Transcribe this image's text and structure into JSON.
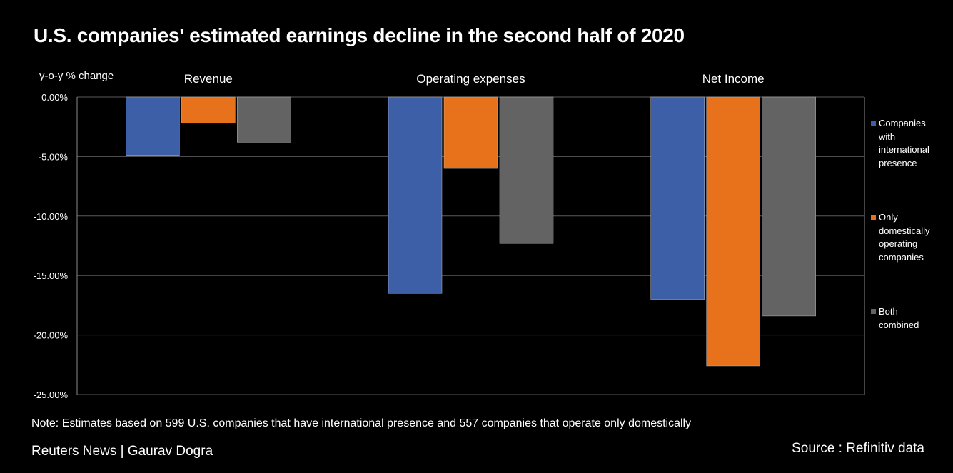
{
  "title": "U.S. companies' estimated earnings decline in the second half of 2020",
  "note": "Note: Estimates based on 599 U.S. companies that have international presence and 557 companies that operate only domestically",
  "credit": "Reuters News | Gaurav Dogra",
  "source": "Source : Refinitiv data",
  "colors": {
    "international": "#3c5fa8",
    "domestic": "#e8711c",
    "combined": "#636363",
    "grid": "#5a5a5a",
    "axis": "#8a8a8a"
  },
  "chart_data": {
    "type": "bar",
    "ylabel": "y-o-y % change",
    "categories": [
      "Revenue",
      "Operating expenses",
      "Net Income"
    ],
    "series": [
      {
        "name": "Companies with international presence",
        "legend_lines": [
          "Companies",
          "with",
          "international",
          "presence"
        ],
        "values": [
          -4.9,
          -16.5,
          -17.0
        ]
      },
      {
        "name": "Only domestically operating companies",
        "legend_lines": [
          "Only",
          "domestically",
          "operating",
          "companies"
        ],
        "values": [
          -2.2,
          -6.0,
          -22.6
        ]
      },
      {
        "name": "Both combined",
        "legend_lines": [
          "Both",
          "combined"
        ],
        "values": [
          -3.8,
          -12.3,
          -18.4
        ]
      }
    ],
    "ylim": [
      -25,
      0
    ],
    "yticks": [
      0,
      -5,
      -10,
      -15,
      -20,
      -25
    ],
    "ytick_labels": [
      "0.00%",
      "-5.00%",
      "-10.00%",
      "-15.00%",
      "-20.00%",
      "-25.00%"
    ],
    "grid": true,
    "legend_position": "right"
  }
}
